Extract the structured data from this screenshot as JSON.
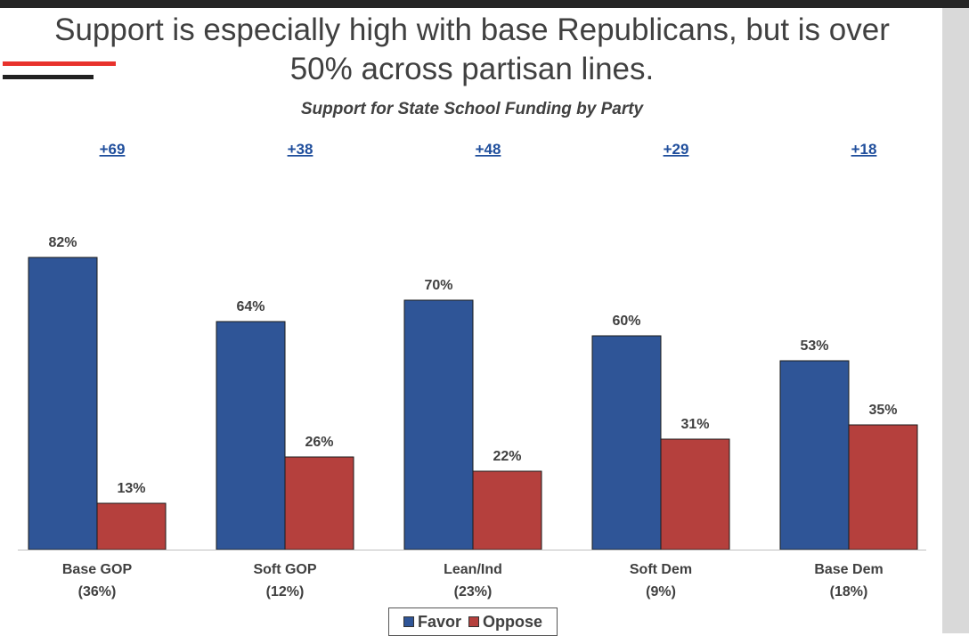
{
  "slide": {
    "title_line1": "Support is especially high with base Republicans, but is over",
    "title_line2": "50% across partisan lines."
  },
  "colors": {
    "favor": "#2f5597",
    "oppose": "#b5403d",
    "margin_text": "#1f4e9c"
  },
  "chart_data": {
    "type": "bar",
    "title": "Support for State School Funding by Party",
    "categories": [
      {
        "line1": "Base GOP",
        "line2": "(36%)"
      },
      {
        "line1": "Soft GOP",
        "line2": "(12%)"
      },
      {
        "line1": "Lean/Ind",
        "line2": "(23%)"
      },
      {
        "line1": "Soft Dem",
        "line2": "(9%)"
      },
      {
        "line1": "Base Dem",
        "line2": "(18%)"
      }
    ],
    "series": [
      {
        "name": "Favor",
        "values": [
          82,
          64,
          70,
          60,
          53
        ],
        "labels": [
          "82%",
          "64%",
          "70%",
          "60%",
          "53%"
        ]
      },
      {
        "name": "Oppose",
        "values": [
          13,
          26,
          22,
          31,
          35
        ],
        "labels": [
          "13%",
          "26%",
          "22%",
          "31%",
          "35%"
        ]
      }
    ],
    "net_margins": [
      "+69",
      "+38",
      "+48",
      "+29",
      "+18"
    ],
    "ylim": [
      0,
      100
    ],
    "grid": false,
    "legend": "bottom-center"
  }
}
